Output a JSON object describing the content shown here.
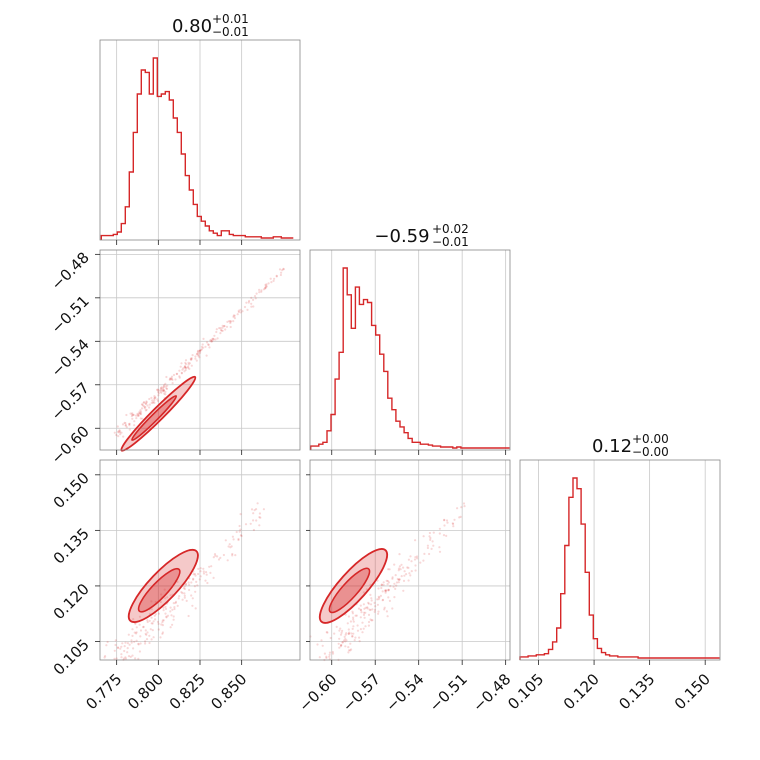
{
  "colors": {
    "series": "#d62728",
    "grid": "#c8c8c8",
    "frame": "#888888"
  },
  "chart_data": {
    "type": "corner",
    "grid": true,
    "parameters": [
      {
        "title": {
          "value": "0.80",
          "plus": "+0.01",
          "minus": "−0.01"
        },
        "range": [
          0.765,
          0.885
        ],
        "ticks": [
          0.775,
          0.8,
          0.825,
          0.85
        ],
        "tick_labels": [
          "0.775",
          "0.800",
          "0.825",
          "0.850"
        ],
        "hist": {
          "type": "step",
          "start": 0.7658,
          "bin_width": 0.0024,
          "counts": [
            2,
            2,
            2,
            3,
            5,
            12,
            26,
            55,
            88,
            120,
            140,
            138,
            120,
            150,
            118,
            120,
            122,
            115,
            100,
            88,
            70,
            52,
            40,
            28,
            18,
            14,
            10,
            6,
            4,
            2,
            6,
            6,
            3,
            2,
            2,
            2,
            1,
            1,
            1,
            1,
            0,
            0,
            0,
            1,
            1,
            0,
            0,
            0
          ]
        }
      },
      {
        "title": {
          "value": "−0.59",
          "plus": "+0.02",
          "minus": "−0.01"
        },
        "range": [
          -0.615,
          -0.477
        ],
        "ticks": [
          -0.6,
          -0.57,
          -0.54,
          -0.51,
          -0.48
        ],
        "tick_labels": [
          "−0.60",
          "−0.57",
          "−0.54",
          "−0.51",
          "−0.48"
        ],
        "hist": {
          "type": "step",
          "start": -0.6145,
          "bin_width": 0.0028,
          "counts": [
            2,
            2,
            4,
            6,
            18,
            35,
            72,
            100,
            188,
            160,
            125,
            168,
            150,
            155,
            152,
            128,
            118,
            98,
            80,
            52,
            40,
            28,
            22,
            16,
            10,
            6,
            6,
            4,
            4,
            3,
            2,
            2,
            1,
            1,
            1,
            0,
            1,
            0,
            0,
            0,
            0,
            0,
            0,
            0,
            0,
            0,
            0,
            0,
            0
          ]
        }
      },
      {
        "title": {
          "value": "0.12",
          "plus": "+0.00",
          "minus": "−0.00"
        },
        "range": [
          0.1,
          0.154
        ],
        "ticks": [
          0.105,
          0.12,
          0.135,
          0.15
        ],
        "tick_labels": [
          "0.105",
          "0.120",
          "0.135",
          "0.150"
        ],
        "hist": {
          "type": "step",
          "start": 0.1,
          "bin_width": 0.0011,
          "counts": [
            1,
            1,
            2,
            2,
            3,
            3,
            4,
            8,
            15,
            28,
            60,
            105,
            150,
            168,
            158,
            125,
            80,
            40,
            18,
            9,
            5,
            3,
            2,
            2,
            1,
            1,
            1,
            1,
            1,
            0,
            0,
            0,
            0,
            0,
            0,
            0,
            0,
            0,
            0,
            0,
            0,
            0,
            0,
            0,
            0,
            0,
            0,
            0,
            0
          ]
        }
      }
    ],
    "pairs": [
      {
        "x_param": 0,
        "y_param": 1,
        "samples_center": [
          0.8,
          -0.59
        ],
        "samples_extent": [
          [
            0.775,
            -0.605
          ],
          [
            0.875,
            -0.49
          ]
        ],
        "contour_levels": [
          0.39,
          0.86
        ]
      },
      {
        "x_param": 0,
        "y_param": 2,
        "samples_center": [
          0.803,
          0.12
        ],
        "samples_extent": [
          [
            0.77,
            0.097
          ],
          [
            0.865,
            0.142
          ]
        ],
        "contour_levels": [
          0.39,
          0.86
        ]
      },
      {
        "x_param": 1,
        "y_param": 2,
        "samples_center": [
          -0.585,
          0.12
        ],
        "samples_extent": [
          [
            -0.611,
            0.097
          ],
          [
            -0.508,
            0.142
          ]
        ],
        "contour_levels": [
          0.39,
          0.86
        ]
      }
    ]
  }
}
